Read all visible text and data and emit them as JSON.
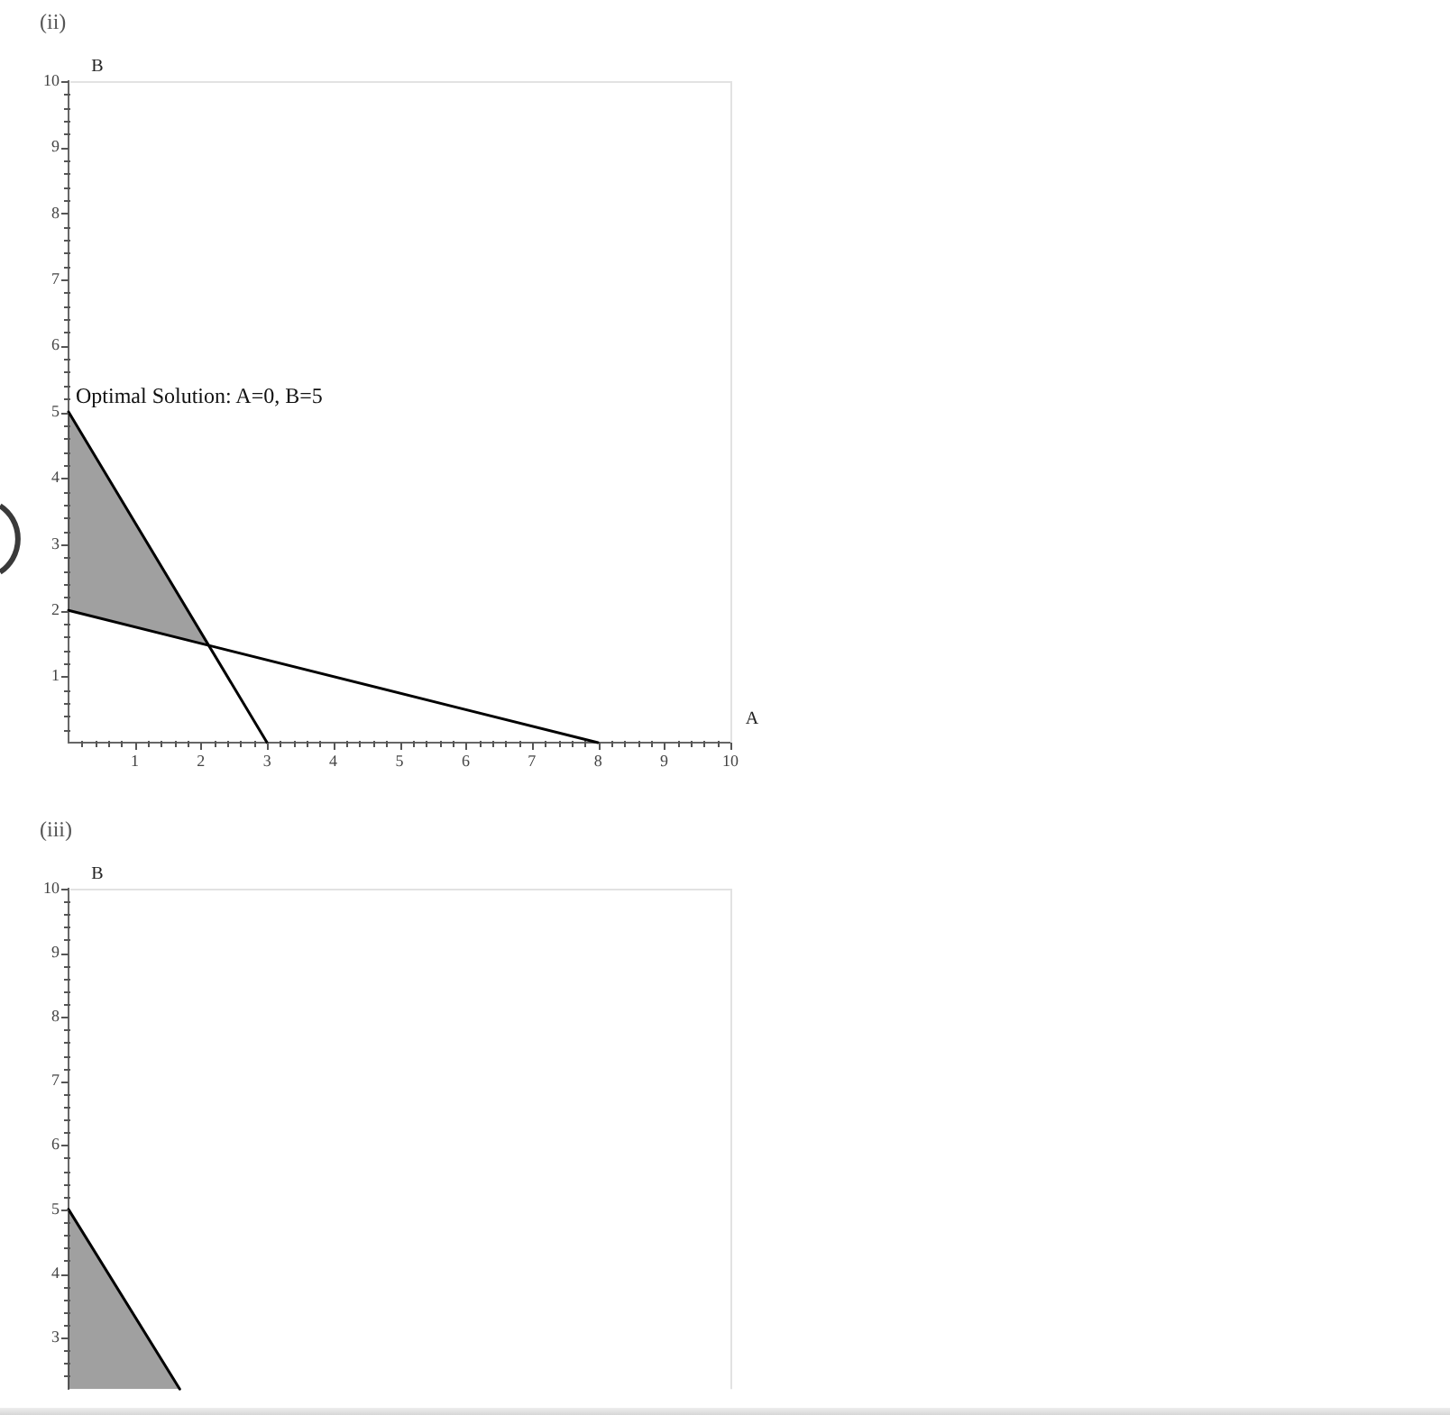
{
  "chart_data": [
    {
      "type": "line",
      "title": "(ii)",
      "xlabel": "A",
      "ylabel": "B",
      "xlim": [
        0,
        10
      ],
      "ylim": [
        0,
        10
      ],
      "xticks": [
        {
          "value": 0.2,
          "label": null
        },
        {
          "value": 0.4,
          "label": null
        },
        {
          "value": 0.6,
          "label": null
        },
        {
          "value": 0.8,
          "label": null
        },
        1,
        {
          "value": 1.2,
          "label": null
        },
        {
          "value": 1.4,
          "label": null
        },
        {
          "value": 1.6,
          "label": null
        },
        {
          "value": 1.8,
          "label": null
        },
        2,
        {
          "value": 2.2,
          "label": null
        },
        {
          "value": 2.4,
          "label": null
        },
        {
          "value": 2.6,
          "label": null
        },
        {
          "value": 2.8,
          "label": null
        },
        3,
        {
          "value": 3.2,
          "label": null
        },
        {
          "value": 3.4,
          "label": null
        },
        {
          "value": 3.6,
          "label": null
        },
        {
          "value": 3.8,
          "label": null
        },
        4,
        {
          "value": 4.2,
          "label": null
        },
        {
          "value": 4.4,
          "label": null
        },
        {
          "value": 4.6,
          "label": null
        },
        {
          "value": 4.8,
          "label": null
        },
        5,
        {
          "value": 5.2,
          "label": null
        },
        {
          "value": 5.4,
          "label": null
        },
        {
          "value": 5.6,
          "label": null
        },
        {
          "value": 5.8,
          "label": null
        },
        6,
        {
          "value": 6.2,
          "label": null
        },
        {
          "value": 6.4,
          "label": null
        },
        {
          "value": 6.6,
          "label": null
        },
        {
          "value": 6.8,
          "label": null
        },
        7,
        {
          "value": 7.2,
          "label": null
        },
        {
          "value": 7.4,
          "label": null
        },
        {
          "value": 7.6,
          "label": null
        },
        {
          "value": 7.8,
          "label": null
        },
        8,
        {
          "value": 8.2,
          "label": null
        },
        {
          "value": 8.4,
          "label": null
        },
        {
          "value": 8.6,
          "label": null
        },
        {
          "value": 8.8,
          "label": null
        },
        9,
        {
          "value": 9.2,
          "label": null
        },
        {
          "value": 9.4,
          "label": null
        },
        {
          "value": 9.6,
          "label": null
        },
        {
          "value": 9.8,
          "label": null
        },
        10
      ],
      "yticks": [
        {
          "value": 0.2,
          "label": null
        },
        {
          "value": 0.4,
          "label": null
        },
        {
          "value": 0.6,
          "label": null
        },
        {
          "value": 0.8,
          "label": null
        },
        1,
        {
          "value": 1.2,
          "label": null
        },
        {
          "value": 1.4,
          "label": null
        },
        {
          "value": 1.6,
          "label": null
        },
        {
          "value": 1.8,
          "label": null
        },
        2,
        {
          "value": 2.2,
          "label": null
        },
        {
          "value": 2.4,
          "label": null
        },
        {
          "value": 2.6,
          "label": null
        },
        {
          "value": 2.8,
          "label": null
        },
        3,
        {
          "value": 3.2,
          "label": null
        },
        {
          "value": 3.4,
          "label": null
        },
        {
          "value": 3.6,
          "label": null
        },
        {
          "value": 3.8,
          "label": null
        },
        4,
        {
          "value": 4.2,
          "label": null
        },
        {
          "value": 4.4,
          "label": null
        },
        {
          "value": 4.6,
          "label": null
        },
        {
          "value": 4.8,
          "label": null
        },
        5,
        {
          "value": 5.2,
          "label": null
        },
        {
          "value": 5.4,
          "label": null
        },
        {
          "value": 5.6,
          "label": null
        },
        {
          "value": 5.8,
          "label": null
        },
        6,
        {
          "value": 6.2,
          "label": null
        },
        {
          "value": 6.4,
          "label": null
        },
        {
          "value": 6.6,
          "label": null
        },
        {
          "value": 6.8,
          "label": null
        },
        7,
        {
          "value": 7.2,
          "label": null
        },
        {
          "value": 7.4,
          "label": null
        },
        {
          "value": 7.6,
          "label": null
        },
        {
          "value": 7.8,
          "label": null
        },
        8,
        {
          "value": 8.2,
          "label": null
        },
        {
          "value": 8.4,
          "label": null
        },
        {
          "value": 8.6,
          "label": null
        },
        {
          "value": 8.8,
          "label": null
        },
        9,
        {
          "value": 9.2,
          "label": null
        },
        {
          "value": 9.4,
          "label": null
        },
        {
          "value": 9.6,
          "label": null
        },
        {
          "value": 9.8,
          "label": null
        },
        10
      ],
      "series": [
        {
          "type": "line",
          "color": "#000000",
          "x": [
            0,
            3
          ],
          "values": [
            5,
            0
          ]
        },
        {
          "type": "line",
          "color": "#000000",
          "x": [
            0,
            2.12,
            8
          ],
          "values": [
            2,
            1.47,
            0
          ],
          "lower": [
            2,
            1.47,
            null
          ],
          "upper": [
            5,
            1.47,
            null
          ]
        }
      ],
      "annotations": [
        {
          "text": "Optimal Solution: A=0, B=5",
          "x": 0,
          "y": 5
        }
      ],
      "marker": "none"
    },
    {
      "type": "line",
      "title": "(iii)",
      "ylabel": "B",
      "xlim": [
        0,
        10
      ],
      "ylim": [
        2.2,
        10
      ],
      "tick_labels": "y",
      "yticks": [
        {
          "value": 2.4,
          "label": null
        },
        {
          "value": 2.6,
          "label": null
        },
        {
          "value": 2.8,
          "label": null
        },
        3,
        {
          "value": 3.2,
          "label": null
        },
        {
          "value": 3.4,
          "label": null
        },
        {
          "value": 3.6,
          "label": null
        },
        {
          "value": 3.8,
          "label": null
        },
        4,
        {
          "value": 4.2,
          "label": null
        },
        {
          "value": 4.4,
          "label": null
        },
        {
          "value": 4.6,
          "label": null
        },
        {
          "value": 4.8,
          "label": null
        },
        5,
        {
          "value": 5.2,
          "label": null
        },
        {
          "value": 5.4,
          "label": null
        },
        {
          "value": 5.6,
          "label": null
        },
        {
          "value": 5.8,
          "label": null
        },
        6,
        {
          "value": 6.2,
          "label": null
        },
        {
          "value": 6.4,
          "label": null
        },
        {
          "value": 6.6,
          "label": null
        },
        {
          "value": 6.8,
          "label": null
        },
        7,
        {
          "value": 7.2,
          "label": null
        },
        {
          "value": 7.4,
          "label": null
        },
        {
          "value": 7.6,
          "label": null
        },
        {
          "value": 7.8,
          "label": null
        },
        8,
        {
          "value": 8.2,
          "label": null
        },
        {
          "value": 8.4,
          "label": null
        },
        {
          "value": 8.6,
          "label": null
        },
        {
          "value": 8.8,
          "label": null
        },
        9,
        {
          "value": 9.2,
          "label": null
        },
        {
          "value": 9.4,
          "label": null
        },
        {
          "value": 9.6,
          "label": null
        },
        {
          "value": 9.8,
          "label": null
        },
        10
      ],
      "series": [
        {
          "type": "area",
          "color": "#000000",
          "x": [
            0,
            1.68
          ],
          "values": [
            5,
            2.2
          ]
        }
      ],
      "marker": "none"
    }
  ]
}
